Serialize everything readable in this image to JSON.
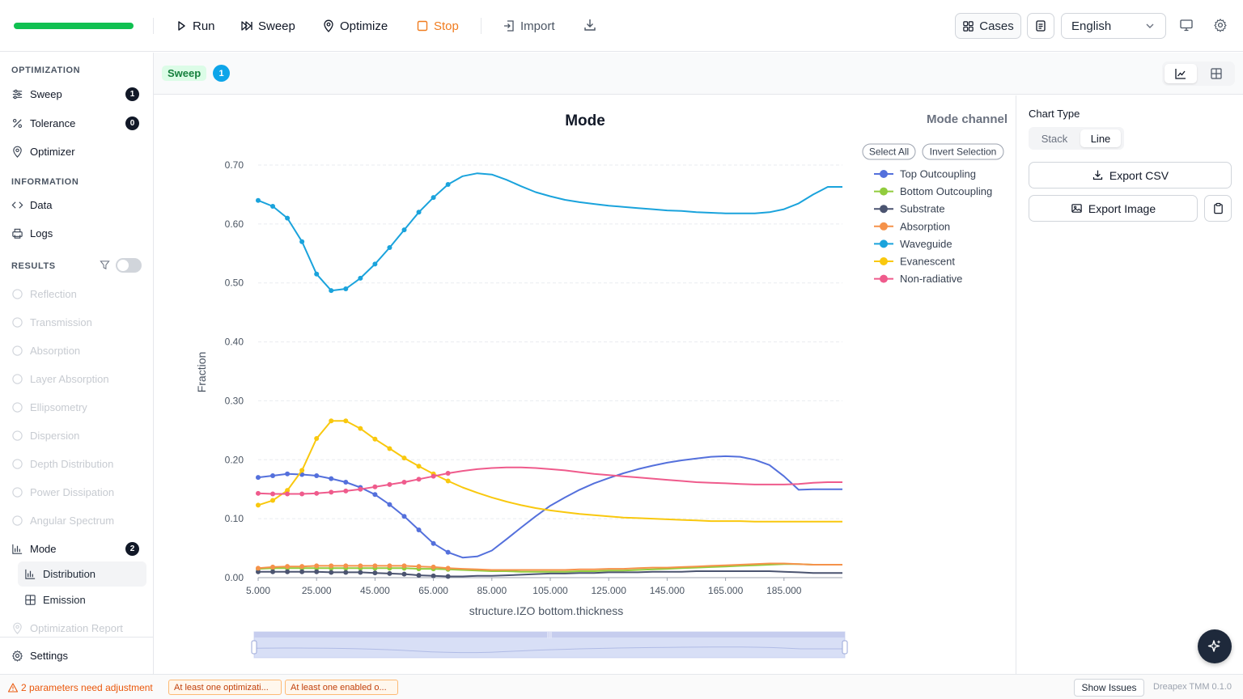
{
  "toolbar": {
    "progress": 1.0,
    "run": "Run",
    "sweep": "Sweep",
    "optimize": "Optimize",
    "stop": "Stop",
    "import": "Import",
    "cases": "Cases",
    "language": "English"
  },
  "sidebar": {
    "optimization_title": "OPTIMIZATION",
    "sweep": "Sweep",
    "sweep_badge": "1",
    "tolerance": "Tolerance",
    "tolerance_badge": "0",
    "optimizer": "Optimizer",
    "information_title": "INFORMATION",
    "data": "Data",
    "logs": "Logs",
    "results_title": "RESULTS",
    "results": [
      "Reflection",
      "Transmission",
      "Absorption",
      "Layer Absorption",
      "Ellipsometry",
      "Dispersion",
      "Depth Distribution",
      "Power Dissipation",
      "Angular Spectrum"
    ],
    "mode": "Mode",
    "mode_badge": "2",
    "distribution": "Distribution",
    "emission": "Emission",
    "optimization_report": "Optimization Report",
    "settings": "Settings"
  },
  "subbar": {
    "tag": "Sweep",
    "count": "1"
  },
  "legend_controls": {
    "select_all": "Select All",
    "invert": "Invert Selection"
  },
  "right_panel": {
    "chart_type_label": "Chart Type",
    "stack": "Stack",
    "line": "Line",
    "export_csv": "Export CSV",
    "export_image": "Export Image"
  },
  "status": {
    "warning": "2 parameters need adjustment",
    "tag1": "At least one optimizati...",
    "tag2": "At least one enabled o...",
    "show_issues": "Show Issues",
    "version": "Dreapex TMM 0.1.0"
  },
  "colors": {
    "accent_green": "#10c051",
    "stop": "#f07c1f"
  },
  "chart_data": {
    "type": "line",
    "title": "Mode",
    "legend_title": "Mode channel",
    "xlabel": "structure.IZO bottom.thickness",
    "ylabel": "Fraction",
    "xlim": [
      5,
      205
    ],
    "ylim": [
      0,
      0.7
    ],
    "x_ticks": [
      "5.000",
      "25.000",
      "45.000",
      "65.000",
      "85.000",
      "105.000",
      "125.000",
      "145.000",
      "165.000",
      "185.000"
    ],
    "y_ticks": [
      "0.00",
      "0.10",
      "0.20",
      "0.30",
      "0.40",
      "0.50",
      "0.60",
      "0.70"
    ],
    "legend_position": "top-right",
    "grid": true,
    "x": [
      5,
      10,
      15,
      20,
      25,
      30,
      35,
      40,
      45,
      50,
      55,
      60,
      65,
      70,
      75,
      80,
      85,
      90,
      95,
      100,
      105,
      110,
      115,
      120,
      125,
      130,
      135,
      140,
      145,
      150,
      155,
      160,
      165,
      170,
      175,
      180,
      185,
      190,
      195,
      200,
      205
    ],
    "marker_count": 14,
    "series": [
      {
        "name": "Top Outcoupling",
        "color": "#5470dc",
        "values": [
          0.17,
          0.173,
          0.176,
          0.175,
          0.173,
          0.168,
          0.162,
          0.153,
          0.141,
          0.124,
          0.104,
          0.081,
          0.058,
          0.043,
          0.034,
          0.036,
          0.046,
          0.065,
          0.085,
          0.104,
          0.122,
          0.136,
          0.149,
          0.16,
          0.169,
          0.177,
          0.184,
          0.19,
          0.195,
          0.199,
          0.202,
          0.205,
          0.206,
          0.205,
          0.2,
          0.191,
          0.172,
          0.149,
          0.15,
          0.15,
          0.15
        ]
      },
      {
        "name": "Bottom Outcoupling",
        "color": "#91cc3d",
        "values": [
          0.015,
          0.016,
          0.016,
          0.016,
          0.016,
          0.016,
          0.016,
          0.016,
          0.016,
          0.016,
          0.016,
          0.015,
          0.015,
          0.014,
          0.013,
          0.012,
          0.011,
          0.011,
          0.01,
          0.01,
          0.01,
          0.01,
          0.011,
          0.011,
          0.012,
          0.012,
          0.013,
          0.014,
          0.015,
          0.016,
          0.017,
          0.018,
          0.019,
          0.02,
          0.021,
          0.022,
          0.023,
          0.023,
          0.022,
          0.022,
          0.022
        ]
      },
      {
        "name": "Substrate",
        "color": "#4b5470",
        "values": [
          0.01,
          0.01,
          0.01,
          0.01,
          0.01,
          0.009,
          0.009,
          0.009,
          0.008,
          0.007,
          0.006,
          0.004,
          0.003,
          0.002,
          0.002,
          0.003,
          0.003,
          0.004,
          0.005,
          0.006,
          0.007,
          0.007,
          0.008,
          0.008,
          0.009,
          0.009,
          0.009,
          0.01,
          0.01,
          0.01,
          0.011,
          0.011,
          0.011,
          0.011,
          0.011,
          0.011,
          0.01,
          0.009,
          0.008,
          0.008,
          0.008
        ]
      },
      {
        "name": "Absorption",
        "color": "#f5924a",
        "values": [
          0.016,
          0.018,
          0.019,
          0.019,
          0.02,
          0.02,
          0.02,
          0.02,
          0.02,
          0.02,
          0.02,
          0.019,
          0.018,
          0.016,
          0.015,
          0.014,
          0.013,
          0.013,
          0.013,
          0.013,
          0.013,
          0.013,
          0.014,
          0.014,
          0.015,
          0.015,
          0.016,
          0.017,
          0.017,
          0.018,
          0.019,
          0.02,
          0.021,
          0.022,
          0.023,
          0.024,
          0.024,
          0.023,
          0.022,
          0.022,
          0.022
        ]
      },
      {
        "name": "Waveguide",
        "color": "#1aa3dc",
        "values": [
          0.64,
          0.63,
          0.61,
          0.57,
          0.515,
          0.487,
          0.49,
          0.508,
          0.532,
          0.56,
          0.59,
          0.62,
          0.645,
          0.667,
          0.681,
          0.686,
          0.684,
          0.675,
          0.664,
          0.654,
          0.647,
          0.641,
          0.637,
          0.634,
          0.631,
          0.629,
          0.627,
          0.625,
          0.623,
          0.622,
          0.62,
          0.619,
          0.618,
          0.618,
          0.618,
          0.62,
          0.625,
          0.635,
          0.65,
          0.663,
          0.663
        ]
      },
      {
        "name": "Evanescent",
        "color": "#f9c80e",
        "values": [
          0.123,
          0.131,
          0.148,
          0.182,
          0.236,
          0.266,
          0.266,
          0.253,
          0.235,
          0.219,
          0.203,
          0.189,
          0.176,
          0.164,
          0.153,
          0.144,
          0.136,
          0.129,
          0.123,
          0.118,
          0.114,
          0.111,
          0.108,
          0.106,
          0.104,
          0.102,
          0.101,
          0.1,
          0.099,
          0.098,
          0.097,
          0.096,
          0.096,
          0.096,
          0.095,
          0.095,
          0.095,
          0.095,
          0.095,
          0.095,
          0.095
        ]
      },
      {
        "name": "Non-radiative",
        "color": "#ef5b8c",
        "values": [
          0.143,
          0.142,
          0.142,
          0.142,
          0.143,
          0.145,
          0.147,
          0.15,
          0.154,
          0.158,
          0.162,
          0.167,
          0.172,
          0.177,
          0.181,
          0.184,
          0.186,
          0.187,
          0.187,
          0.186,
          0.184,
          0.182,
          0.179,
          0.176,
          0.174,
          0.172,
          0.17,
          0.168,
          0.166,
          0.164,
          0.162,
          0.161,
          0.16,
          0.159,
          0.158,
          0.158,
          0.158,
          0.159,
          0.161,
          0.162,
          0.162
        ]
      }
    ]
  }
}
